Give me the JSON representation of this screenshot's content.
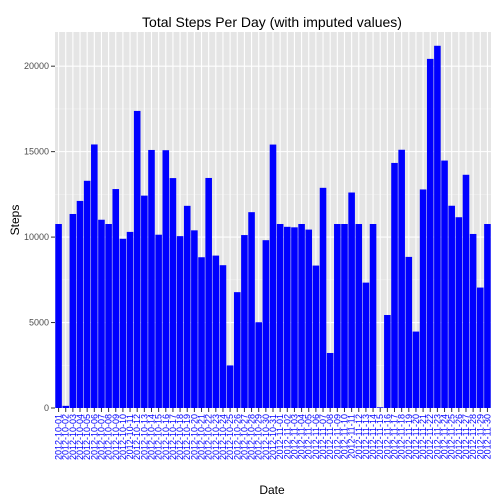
{
  "chart_data": {
    "type": "bar",
    "title": "Total Steps Per Day (with imputed values)",
    "xlabel": "Date",
    "ylabel": "Steps",
    "ylim": [
      0,
      22000
    ],
    "yticks": [
      0,
      5000,
      10000,
      15000,
      20000
    ],
    "grid": true,
    "bar_color": "#0000ff",
    "panel_color": "#e5e5e5",
    "grid_color": "#ffffff",
    "tick_label_color": "#0000ff",
    "categories": [
      "2012-10-01",
      "2012-10-02",
      "2012-10-03",
      "2012-10-04",
      "2012-10-05",
      "2012-10-06",
      "2012-10-07",
      "2012-10-08",
      "2012-10-09",
      "2012-10-10",
      "2012-10-11",
      "2012-10-12",
      "2012-10-13",
      "2012-10-14",
      "2012-10-15",
      "2012-10-16",
      "2012-10-17",
      "2012-10-18",
      "2012-10-19",
      "2012-10-20",
      "2012-10-21",
      "2012-10-22",
      "2012-10-23",
      "2012-10-24",
      "2012-10-25",
      "2012-10-26",
      "2012-10-27",
      "2012-10-28",
      "2012-10-29",
      "2012-10-30",
      "2012-10-31",
      "2012-11-01",
      "2012-11-02",
      "2012-11-03",
      "2012-11-04",
      "2012-11-05",
      "2012-11-06",
      "2012-11-07",
      "2012-11-08",
      "2012-11-09",
      "2012-11-10",
      "2012-11-11",
      "2012-11-12",
      "2012-11-13",
      "2012-11-14",
      "2012-11-15",
      "2012-11-16",
      "2012-11-17",
      "2012-11-18",
      "2012-11-19",
      "2012-11-20",
      "2012-11-21",
      "2012-11-22",
      "2012-11-23",
      "2012-11-24",
      "2012-11-25",
      "2012-11-26",
      "2012-11-27",
      "2012-11-28",
      "2012-11-29",
      "2012-11-30"
    ],
    "values": [
      10766,
      126,
      11352,
      12116,
      13294,
      15420,
      11015,
      10766,
      12811,
      9900,
      10304,
      17382,
      12426,
      15098,
      10139,
      15084,
      13452,
      10056,
      11829,
      10395,
      8821,
      13460,
      8918,
      8355,
      2492,
      6778,
      10119,
      11458,
      5018,
      9819,
      15414,
      10766,
      10600,
      10571,
      10766,
      10439,
      8334,
      12883,
      3219,
      10766,
      10766,
      12608,
      10765,
      7336,
      10766,
      41,
      5441,
      14339,
      15110,
      8841,
      4472,
      12787,
      20427,
      21194,
      14478,
      11834,
      11162,
      13646,
      10183,
      7047,
      10766
    ]
  }
}
